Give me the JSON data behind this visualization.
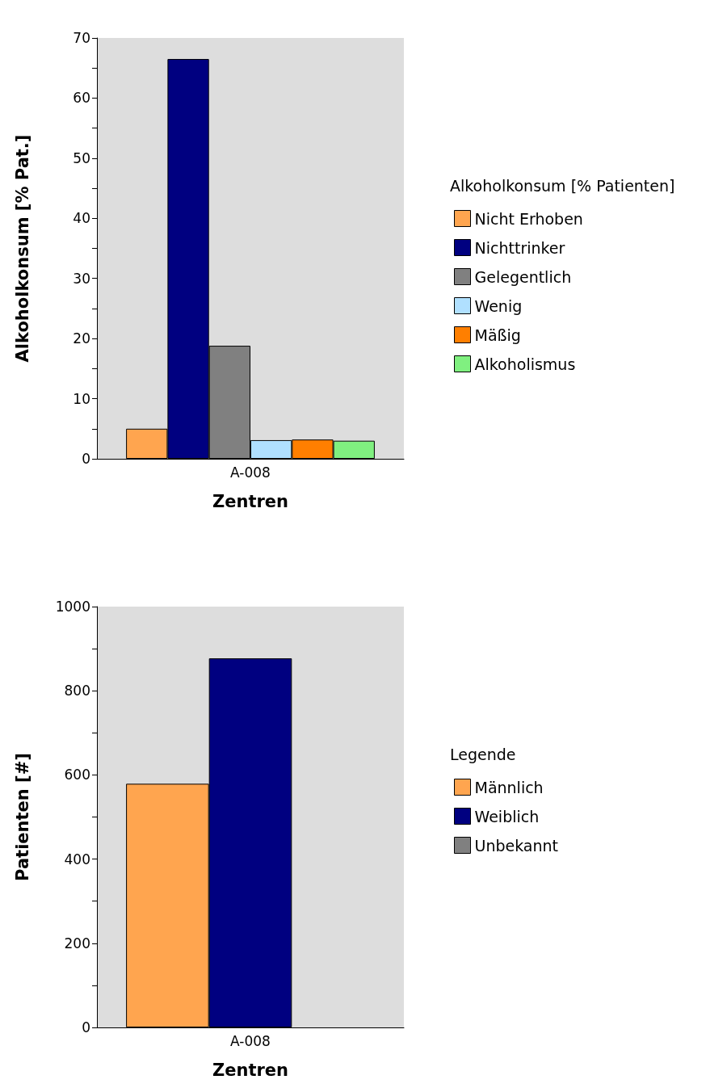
{
  "chart_data": [
    {
      "type": "bar",
      "categories": [
        "A-008"
      ],
      "xlabel": "Zentren",
      "ylabel": "Alkoholkonsum [% Pat.]",
      "legend_title": "Alkoholkonsum [% Patienten]",
      "legend": "right",
      "grid": false,
      "ylim": [
        0,
        70
      ],
      "yticks": [
        0,
        {
          "value": 5,
          "label": null
        },
        10,
        {
          "value": 15,
          "label": null
        },
        20,
        {
          "value": 25,
          "label": null
        },
        30,
        {
          "value": 35,
          "label": null
        },
        40,
        {
          "value": 45,
          "label": null
        },
        50,
        {
          "value": 55,
          "label": null
        },
        60,
        {
          "value": 65,
          "label": null
        },
        70
      ],
      "series": [
        {
          "name": "Nicht Erhoben",
          "color": "#ffa54f",
          "values": [
            5.0
          ]
        },
        {
          "name": "Nichttrinker",
          "color": "#000080",
          "values": [
            66.5
          ]
        },
        {
          "name": "Gelegentlich",
          "color": "#808080",
          "values": [
            18.8
          ]
        },
        {
          "name": "Wenig",
          "color": "#b0e0ff",
          "values": [
            3.1
          ]
        },
        {
          "name": "Mäßig",
          "color": "#ff7f00",
          "values": [
            3.2
          ]
        },
        {
          "name": "Alkoholismus",
          "color": "#80f080",
          "values": [
            3.0
          ]
        }
      ]
    },
    {
      "type": "bar",
      "categories": [
        "A-008"
      ],
      "xlabel": "Zentren",
      "ylabel": "Patienten [#]",
      "legend_title": "Legende",
      "legend": "right",
      "grid": false,
      "ylim": [
        0,
        1000
      ],
      "yticks": [
        0,
        {
          "value": 100,
          "label": null
        },
        200,
        {
          "value": 300,
          "label": null
        },
        400,
        {
          "value": 500,
          "label": null
        },
        600,
        {
          "value": 700,
          "label": null
        },
        800,
        {
          "value": 900,
          "label": null
        },
        1000
      ],
      "series": [
        {
          "name": "Männlich",
          "color": "#ffa54f",
          "values": [
            579
          ]
        },
        {
          "name": "Weiblich",
          "color": "#000080",
          "values": [
            877
          ]
        },
        {
          "name": "Unbekannt",
          "color": "#808080",
          "values": [
            0
          ]
        }
      ]
    }
  ]
}
